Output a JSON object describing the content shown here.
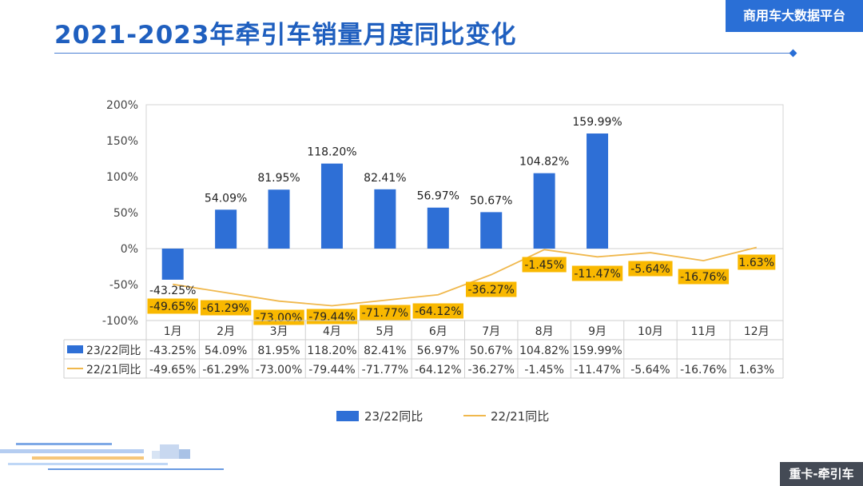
{
  "page": {
    "title": "2021-2023年牵引车销量月度同比变化",
    "brand": "商用车大数据平台",
    "badge": "重卡-牵引车"
  },
  "colors": {
    "bar": "#2e6fd6",
    "line": "#f0b84d",
    "label_box": "#f9b800",
    "title": "#1f5fbf"
  },
  "chart_data": {
    "type": "bar",
    "categories": [
      "1月",
      "2月",
      "3月",
      "4月",
      "5月",
      "6月",
      "7月",
      "8月",
      "9月",
      "10月",
      "11月",
      "12月"
    ],
    "series": [
      {
        "name": "23/22同比",
        "type": "bar",
        "values": [
          -43.25,
          54.09,
          81.95,
          118.2,
          82.41,
          56.97,
          50.67,
          104.82,
          159.99,
          null,
          null,
          null
        ],
        "labels": [
          "-43.25%",
          "54.09%",
          "81.95%",
          "118.20%",
          "82.41%",
          "56.97%",
          "50.67%",
          "104.82%",
          "159.99%",
          "",
          "",
          ""
        ]
      },
      {
        "name": "22/21同比",
        "type": "line",
        "values": [
          -49.65,
          -61.29,
          -73.0,
          -79.44,
          -71.77,
          -64.12,
          -36.27,
          -1.45,
          -11.47,
          -5.64,
          -16.76,
          1.63
        ],
        "labels": [
          "-49.65%",
          "-61.29%",
          "-73.00%",
          "-79.44%",
          "-71.77%",
          "-64.12%",
          "-36.27%",
          "-1.45%",
          "-11.47%",
          "-5.64%",
          "-16.76%",
          "1.63%"
        ]
      }
    ],
    "ylim": [
      -100,
      200
    ],
    "yticks": [
      -100,
      -50,
      0,
      50,
      100,
      150,
      200
    ],
    "ytick_labels": [
      "-100%",
      "-50%",
      "0%",
      "50%",
      "100%",
      "150%",
      "200%"
    ],
    "grid": false,
    "data_table": true,
    "legend_position": "bottom"
  }
}
